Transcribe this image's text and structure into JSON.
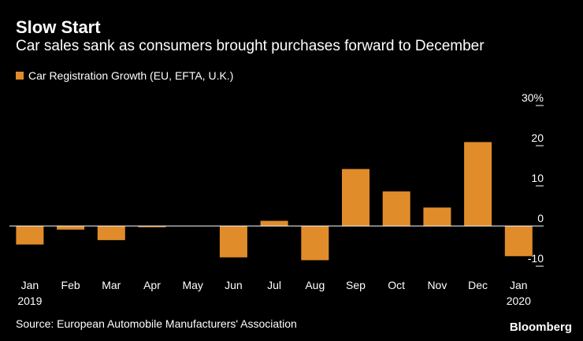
{
  "header": {
    "title": "Slow Start",
    "subtitle": "Car sales sank as consumers brought purchases forward to December"
  },
  "legend": {
    "label": "Car Registration Growth (EU, EFTA, U.K.)"
  },
  "footer": {
    "source": "Source: European Automobile Manufacturers' Association",
    "brand": "Bloomberg"
  },
  "colors": {
    "background": "#000000",
    "bar": "#e08c2a",
    "axis": "#ffffff",
    "text": "#ffffff"
  },
  "chart_data": {
    "type": "bar",
    "title": "Slow Start",
    "subtitle": "Car sales sank as consumers brought purchases forward to December",
    "xlabel": "",
    "ylabel": "",
    "categories": [
      "Jan",
      "Feb",
      "Mar",
      "Apr",
      "May",
      "Jun",
      "Jul",
      "Aug",
      "Sep",
      "Oct",
      "Nov",
      "Dec",
      "Jan"
    ],
    "year_labels": [
      "2019",
      "",
      "",
      "",
      "",
      "",
      "",
      "",
      "",
      "",
      "",
      "",
      "2020"
    ],
    "series": [
      {
        "name": "Car Registration Growth (EU, EFTA, U.K.)",
        "values": [
          -4.6,
          -0.9,
          -3.5,
          -0.3,
          0.1,
          -7.8,
          1.3,
          -8.5,
          14.2,
          8.6,
          4.6,
          20.9,
          -7.5
        ]
      }
    ],
    "y_ticks": [
      30,
      20,
      10,
      0,
      -10
    ],
    "y_tick_labels": [
      "30%",
      "20",
      "10",
      "0",
      "-10"
    ],
    "ylim": [
      -10.5,
      33
    ],
    "gridlines": false,
    "axis_position": "right",
    "legend_position": "top-left"
  }
}
